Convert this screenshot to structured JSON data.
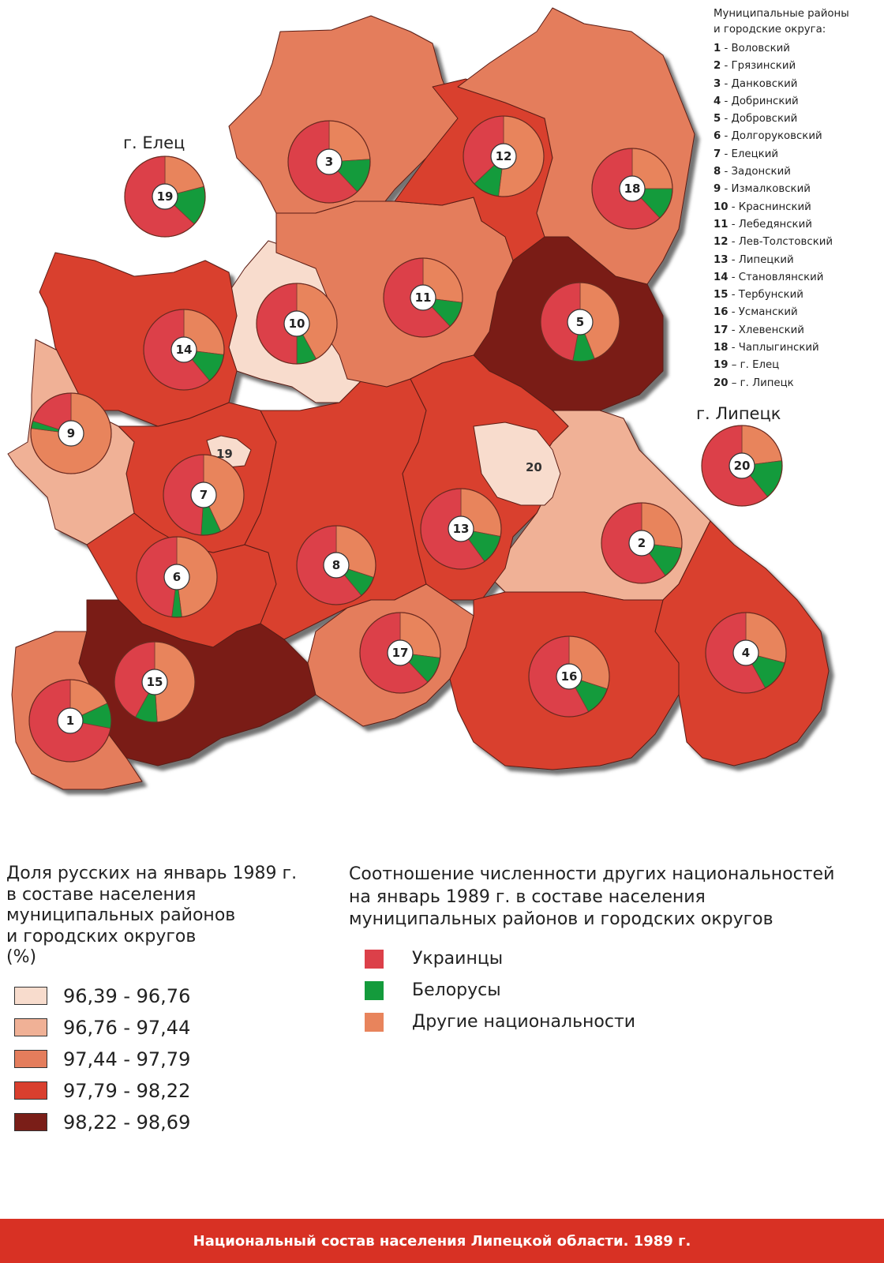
{
  "colors": {
    "class1": "#f8dccd",
    "class2": "#f0b196",
    "class3": "#e47d5c",
    "class4": "#d93f2e",
    "class5": "#7a1e18",
    "ukrainians": "#dc4049",
    "belarusians": "#149b3c",
    "others": "#e8845c",
    "footer_bg": "#d83124"
  },
  "district_list": {
    "heading": "Муниципальные районы\nи городские округа:",
    "items": [
      {
        "num": "1",
        "sep": " - ",
        "name": "Воловский"
      },
      {
        "num": "2",
        "sep": " - ",
        "name": "Грязинский"
      },
      {
        "num": "3",
        "sep": " - ",
        "name": "Данковский"
      },
      {
        "num": "4",
        "sep": " - ",
        "name": "Добринский"
      },
      {
        "num": "5",
        "sep": " - ",
        "name": "Добровский"
      },
      {
        "num": "6",
        "sep": " - ",
        "name": "Долгоруковский"
      },
      {
        "num": "7",
        "sep": " - ",
        "name": "Елецкий"
      },
      {
        "num": "8",
        "sep": " - ",
        "name": "Задонский"
      },
      {
        "num": "9",
        "sep": " - ",
        "name": "Измалковский"
      },
      {
        "num": "10",
        "sep": " - ",
        "name": "Краснинский"
      },
      {
        "num": "11",
        "sep": " - ",
        "name": "Лебедянский"
      },
      {
        "num": "12",
        "sep": " - ",
        "name": "Лев-Толстовский"
      },
      {
        "num": "13",
        "sep": " - ",
        "name": "Липецкий"
      },
      {
        "num": "14",
        "sep": " - ",
        "name": "Становлянский"
      },
      {
        "num": "15",
        "sep": " - ",
        "name": "Тербунский"
      },
      {
        "num": "16",
        "sep": " - ",
        "name": "Усманский"
      },
      {
        "num": "17",
        "sep": " - ",
        "name": "Хлевенский"
      },
      {
        "num": "18",
        "sep": " - ",
        "name": "Чаплыгинский"
      },
      {
        "num": "19",
        "sep": " – ",
        "name": "г. Елец"
      },
      {
        "num": "20",
        "sep": " – ",
        "name": "г. Липецк"
      }
    ]
  },
  "city_labels": {
    "elets": "г. Елец",
    "lipetsk": "г. Липецк",
    "elets_small": "19",
    "lipetsk_small": "20"
  },
  "legend_share": {
    "title": "Доля русских на январь 1989 г.\nв составе населения\nмуниципальных районов\nи городских округов\n(%)",
    "classes": [
      {
        "label": "96,39 - 96,76",
        "color": "#f8dccd"
      },
      {
        "label": "96,76 - 97,44",
        "color": "#f0b196"
      },
      {
        "label": "97,44 - 97,79",
        "color": "#e47d5c"
      },
      {
        "label": "97,79 - 98,22",
        "color": "#d93f2e"
      },
      {
        "label": "98,22 - 98,69",
        "color": "#7a1e18"
      }
    ]
  },
  "legend_ratio": {
    "title": "Соотношение численности других национальностей\nна январь 1989 г. в составе населения\nмуниципальных районов и городских округов",
    "items": [
      {
        "label": "Украинцы",
        "color": "#dc4049"
      },
      {
        "label": "Белорусы",
        "color": "#149b3c"
      },
      {
        "label": "Другие национальности",
        "color": "#e8845c"
      }
    ]
  },
  "districts": [
    {
      "id": "1",
      "class": 3,
      "shares": {
        "ukr": 0.72,
        "bel": 0.1,
        "oth": 0.18
      }
    },
    {
      "id": "2",
      "class": 2,
      "shares": {
        "ukr": 0.6,
        "bel": 0.13,
        "oth": 0.27
      }
    },
    {
      "id": "3",
      "class": 3,
      "shares": {
        "ukr": 0.62,
        "bel": 0.14,
        "oth": 0.24
      }
    },
    {
      "id": "4",
      "class": 4,
      "shares": {
        "ukr": 0.58,
        "bel": 0.13,
        "oth": 0.29
      }
    },
    {
      "id": "5",
      "class": 5,
      "shares": {
        "ukr": 0.47,
        "bel": 0.09,
        "oth": 0.44
      }
    },
    {
      "id": "6",
      "class": 4,
      "shares": {
        "ukr": 0.48,
        "bel": 0.04,
        "oth": 0.48
      }
    },
    {
      "id": "7",
      "class": 4,
      "shares": {
        "ukr": 0.49,
        "bel": 0.08,
        "oth": 0.43
      }
    },
    {
      "id": "8",
      "class": 4,
      "shares": {
        "ukr": 0.61,
        "bel": 0.09,
        "oth": 0.3
      }
    },
    {
      "id": "9",
      "class": 2,
      "shares": {
        "ukr": 0.2,
        "bel": 0.03,
        "oth": 0.77
      }
    },
    {
      "id": "10",
      "class": 1,
      "shares": {
        "ukr": 0.5,
        "bel": 0.08,
        "oth": 0.42
      }
    },
    {
      "id": "11",
      "class": 3,
      "shares": {
        "ukr": 0.62,
        "bel": 0.11,
        "oth": 0.27
      }
    },
    {
      "id": "12",
      "class": 4,
      "shares": {
        "ukr": 0.37,
        "bel": 0.11,
        "oth": 0.52
      }
    },
    {
      "id": "13",
      "class": 4,
      "shares": {
        "ukr": 0.6,
        "bel": 0.12,
        "oth": 0.28
      }
    },
    {
      "id": "14",
      "class": 4,
      "shares": {
        "ukr": 0.61,
        "bel": 0.12,
        "oth": 0.27
      }
    },
    {
      "id": "15",
      "class": 5,
      "shares": {
        "ukr": 0.42,
        "bel": 0.09,
        "oth": 0.49
      }
    },
    {
      "id": "16",
      "class": 4,
      "shares": {
        "ukr": 0.58,
        "bel": 0.12,
        "oth": 0.3
      }
    },
    {
      "id": "17",
      "class": 3,
      "shares": {
        "ukr": 0.62,
        "bel": 0.11,
        "oth": 0.27
      }
    },
    {
      "id": "18",
      "class": 3,
      "shares": {
        "ukr": 0.62,
        "bel": 0.13,
        "oth": 0.25
      }
    },
    {
      "id": "19",
      "class": 0,
      "shares": {
        "ukr": 0.63,
        "bel": 0.16,
        "oth": 0.21
      }
    },
    {
      "id": "20",
      "class": 1,
      "shares": {
        "ukr": 0.61,
        "bel": 0.16,
        "oth": 0.23
      }
    }
  ],
  "footer": {
    "text": "Национальный состав населения Липецкой области. 1989 г."
  }
}
